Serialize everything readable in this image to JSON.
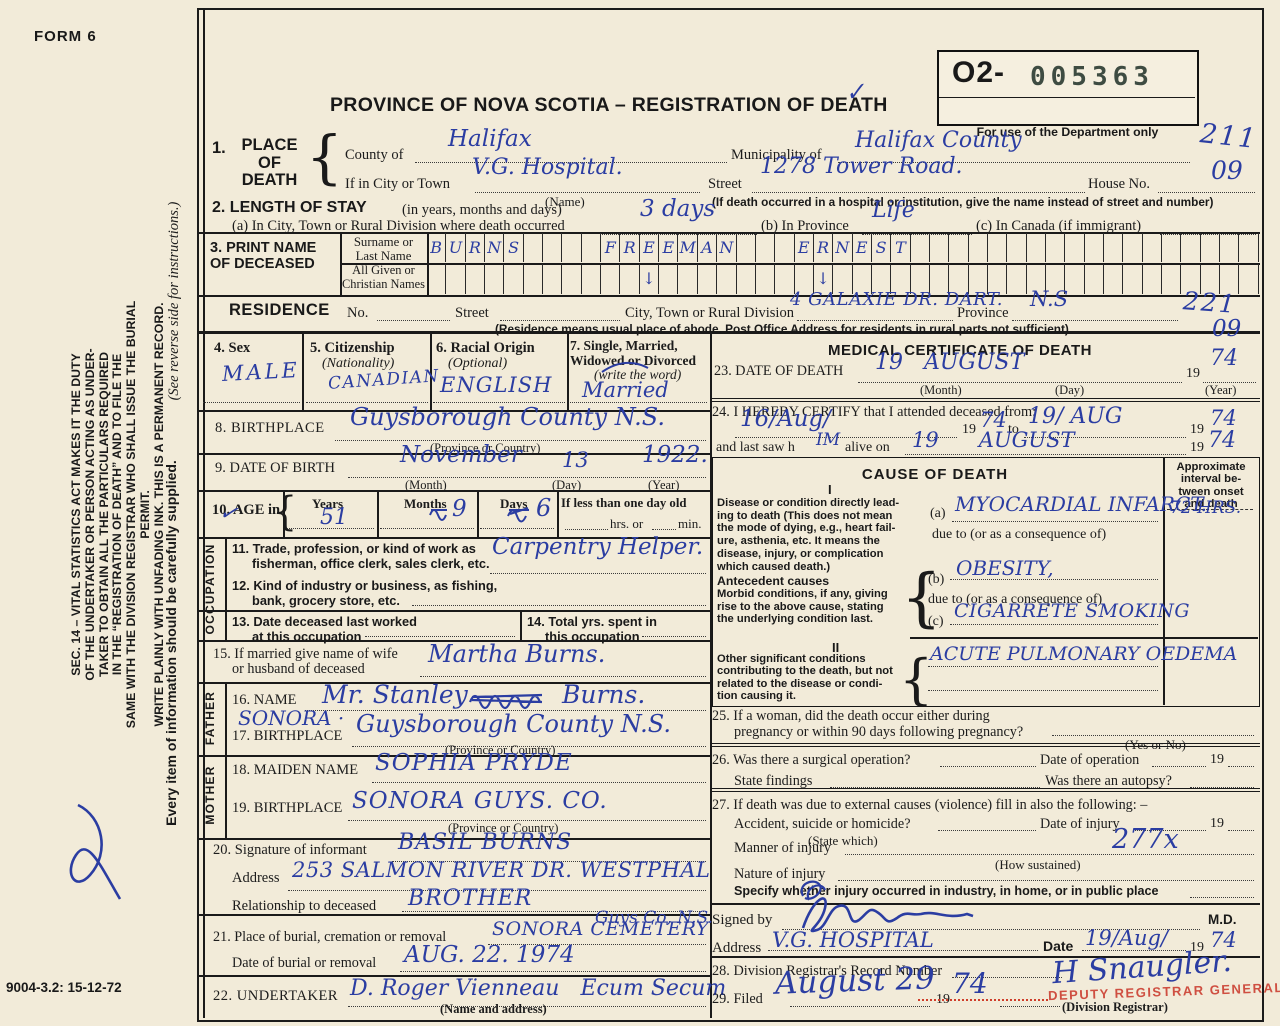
{
  "colors": {
    "ink": "#2b3da2",
    "stamp_red": "#c9392b",
    "serial_green": "#3e4c42",
    "paper": "#f2ebd9"
  },
  "misc": {
    "yr19": "19",
    "brace": "{",
    "arrow": "↓",
    "check": "✓"
  },
  "page": {
    "form_no": "FORM 6",
    "doc_code": "9004-3.2: 15-12-72"
  },
  "sidebar": {
    "duty": "SEC. 14 – VITAL STATISTICS ACT MAKES IT THE DUTY\nOF THE UNDERTAKER OR PERSON ACTING AS UNDER-\nTAKER TO OBTAIN ALL THE PARTICULARS REQUIRED\nIN THE “REGISTRATION OF DEATH” AND TO FILE THE\nSAME WITH THE DIVISION REGISTRAR WHO SHALL ISSUE THE BURIAL PERMIT.\nWRITE PLAINLY WITH UNFADING INK. THIS IS A PERMANENT RECORD.",
    "see_reverse": "(See reverse side for instructions.)",
    "every_item": "Every item of information should be carefully supplied."
  },
  "header": {
    "title": "PROVINCE OF NOVA SCOTIA – REGISTRATION OF DEATH",
    "reg_prefix": "O2-",
    "reg_number": "005363",
    "dept_only": "For use of the Department only",
    "code1": "211",
    "code2": "09"
  },
  "s1": {
    "no": "1.",
    "label": "PLACE\nOF\nDEATH",
    "county_label": "County of",
    "county": "Halifax",
    "municipality_label": "Municipality of",
    "municipality": "Halifax County",
    "city_label": "If in City or Town",
    "city": "V.G. Hospital.",
    "name_note": "(Name)",
    "street_label": "Street",
    "street": "1278 Tower Road.",
    "house_label": "House No.",
    "hospital_note": "(If death occurred in a hospital or institution, give the name instead of street and number)"
  },
  "s2": {
    "label": "2. LENGTH OF STAY",
    "sub": "(in years, months and days)",
    "a_label": "(a) In City, Town or Rural Division where death occurred",
    "a": "3 days",
    "b_label": "(b) In Province",
    "b": "Life",
    "c_label": "(c) In Canada (if immigrant)"
  },
  "s3": {
    "label": "3. PRINT NAME\nOF DECEASED",
    "surname_label": "Surname or\nLast Name",
    "given_label": "All Given or\nChristian Names",
    "cells": 43,
    "row1_words": [
      {
        "start": 0,
        "text": "BURNS"
      },
      {
        "start": 9,
        "text": "FREEMAN"
      },
      {
        "start": 19,
        "text": "ERNEST"
      }
    ],
    "row2_arrows": [
      11,
      20
    ]
  },
  "residence": {
    "label": "RESIDENCE",
    "no_label": "No.",
    "street_label": "Street",
    "city_label": "City, Town or Rural Division",
    "city": "4 GALAXIE DR. DART.",
    "province_label": "Province",
    "province": "N.S",
    "code1": "221",
    "code2": "09",
    "note": "(Residence means usual place of abode. Post Office Address for residents in rural parts not sufficient)"
  },
  "s4": {
    "label": "4. Sex",
    "value": "MALE"
  },
  "s5": {
    "label": "5. Citizenship",
    "sub": "(Nationality)",
    "value": "CANADIAN"
  },
  "s6": {
    "label": "6. Racial Origin",
    "sub": "(Optional)",
    "value": "ENGLISH"
  },
  "s7": {
    "label": "7. Single, Married,\nWidowed or Divorced",
    "sub": "(write the word)",
    "value": "Married"
  },
  "s8": {
    "label": "8. BIRTHPLACE",
    "value": "Guysborough County N.S.",
    "note": "(Province or Country)"
  },
  "s9": {
    "label": "9. DATE OF BIRTH",
    "month": "November",
    "day": "13",
    "year": "1922.",
    "month_note": "(Month)",
    "day_note": "(Day)",
    "year_note": "(Year)"
  },
  "s10": {
    "label": "10. AGE in",
    "years_label": "Years",
    "years": "51",
    "months_label": "Months",
    "months": "9",
    "days_label": "Days",
    "days": "6",
    "less_label": "If less than one day old",
    "hrs_label": "hrs. or",
    "min_label": "min."
  },
  "occupation": {
    "vertical": "OCCUPATION",
    "l11a": "11. Trade, profession, or kind of work as",
    "l11b": "fisherman, office clerk, sales clerk, etc.",
    "v11": "Carpentry Helper.",
    "l12a": "12. Kind of industry or business, as fishing,",
    "l12b": "bank, grocery store, etc.",
    "l13a": "13. Date deceased last worked",
    "l13b": "at this occupation",
    "l14a": "14. Total yrs. spent in",
    "l14b": "this occupation"
  },
  "s15": {
    "label_a": "15. If married give name of wife",
    "label_b": "or husband of deceased",
    "value": "Martha Burns."
  },
  "father": {
    "vertical": "FATHER",
    "name_label": "16. NAME",
    "name_a": "Mr. Stanley",
    "name_b": "Burns.",
    "bp_label": "17. BIRTHPLACE",
    "bp_over": "SONORA ·",
    "bp": "Guysborough County N.S.",
    "bp_note": "(Province or Country)"
  },
  "mother": {
    "vertical": "MOTHER",
    "maiden_label": "18. MAIDEN NAME",
    "maiden": "SOPHIA PRYDE",
    "bp_label": "19. BIRTHPLACE",
    "bp": "SONORA GUYS. CO.",
    "bp_note": "(Province or Country)"
  },
  "s20": {
    "label": "20. Signature of informant",
    "value": "BASIL BURNS",
    "addr_label": "Address",
    "addr": "253 SALMON RIVER DR. WESTPHAL",
    "rel_label": "Relationship to deceased",
    "rel": "BROTHER"
  },
  "s21": {
    "label": "21. Place of burial, cremation or removal",
    "value": "SONORA CEMETERY",
    "over": "Guys Co, N.S.",
    "date_label": "Date of burial or removal",
    "date": "AUG. 22. 1974"
  },
  "s22": {
    "label": "22. UNDERTAKER",
    "value": "D. Roger Vienneau   Ecum Secum",
    "note": "(Name and address)"
  },
  "medical": {
    "title": "MEDICAL CERTIFICATE OF DEATH",
    "s23": {
      "label": "23. DATE OF DEATH",
      "value": "19   AUGUST",
      "yr": "74",
      "month_note": "(Month)",
      "day_note": "(Day)",
      "year_note": "(Year)"
    },
    "s24": {
      "label": "24. I HEREBY CERTIFY that I attended deceased from:",
      "from": "16/Aug/",
      "from_yr": "74",
      "to_label": "to",
      "to": "19/ AUG",
      "to_yr": "74",
      "last_a": "and last saw h",
      "him": "IM",
      "last_b": "alive on",
      "last": "19      AUGUST",
      "last_yr": "74"
    },
    "cause": {
      "title": "CAUSE OF DEATH",
      "interval_header": "Approximate\ninterval be-\ntween onset\nand death",
      "r1": "I",
      "lead": "Disease or condition directly lead-\ning to death (This does not mean\nthe mode of dying, e.g., heart fail-\nure, asthenia, etc. It means the\ndisease, injury, or complication\nwhich caused death.)",
      "a_label": "(a)",
      "a": "MYOCARDIAL INFARCT.",
      "a_interval": "72 HRS.",
      "due1": "due to (or as a consequence of)",
      "ant_title": "Antecedent causes",
      "ant": "Morbid conditions, if any, giving\nrise to the above cause, stating\nthe underlying condition last.",
      "b_label": "(b)",
      "b": "OBESITY,",
      "due2": "due to (or as a consequence of)",
      "c_label": "(c)",
      "c": "CIGARRETE SMOKING",
      "r2": "II",
      "other": "Other significant conditions\ncontributing to the death, but not\nrelated to the disease or condi-\ntion causing it.",
      "other_value": "ACUTE PULMONARY OEDEMA"
    },
    "s25": {
      "a": "25. If a woman, did the death occur either during",
      "b": "pregnancy or within 90 days following pregnancy?",
      "note": "(Yes or No)"
    },
    "s26": {
      "a": "26. Was there a surgical operation?",
      "b": "Date of operation",
      "c": "State findings",
      "d": "Was there an autopsy?"
    },
    "s27": {
      "a": "27. If death was due to external causes (violence) fill in also the following: –",
      "b": "Accident, suicide or homicide?",
      "b_note": "(State which)",
      "c": "Date of injury",
      "manner": "Manner of injury",
      "manner_note": "(How sustained)",
      "manner_hw": "277x",
      "nature": "Nature of injury",
      "specify": "Specify whether injury occurred in industry, in home, or in public place"
    },
    "signed": {
      "label": "Signed by",
      "md": "M.D.",
      "addr_label": "Address",
      "addr": "V.G. HOSPITAL",
      "date_label": "Date",
      "date": "19/Aug/",
      "date_yr": "74"
    },
    "s28": {
      "label": "28. Division Registrar's Record Number"
    },
    "s29": {
      "label": "29. Filed",
      "value": "August 29",
      "yr": "74",
      "reg_note": "(Division Registrar)",
      "stamp": "DEPUTY REGISTRAR GENERAL",
      "signature": "H Snaugler."
    }
  }
}
